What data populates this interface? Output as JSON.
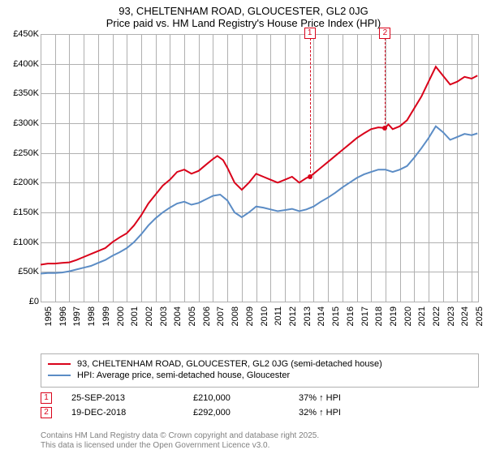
{
  "title": "93, CHELTENHAM ROAD, GLOUCESTER, GL2 0JG",
  "subtitle": "Price paid vs. HM Land Registry's House Price Index (HPI)",
  "chart": {
    "background_color": "#ffffff",
    "grid_color": "#b0b0b0",
    "title_fontsize": 13,
    "label_fontsize": 11,
    "ylim": [
      0,
      450000
    ],
    "ytick_step": 50000,
    "ytick_labels": [
      "£0",
      "£50K",
      "£100K",
      "£150K",
      "£200K",
      "£250K",
      "£300K",
      "£350K",
      "£400K",
      "£450K"
    ],
    "xlim": [
      1995,
      2025.5
    ],
    "xtick_years": [
      1995,
      1996,
      1997,
      1998,
      1999,
      2000,
      2001,
      2002,
      2003,
      2004,
      2005,
      2006,
      2007,
      2008,
      2009,
      2010,
      2011,
      2012,
      2013,
      2014,
      2015,
      2016,
      2017,
      2018,
      2019,
      2020,
      2021,
      2022,
      2023,
      2024,
      2025
    ],
    "series": [
      {
        "key": "price_paid",
        "label": "93, CHELTENHAM ROAD, GLOUCESTER, GL2 0JG (semi-detached house)",
        "color": "#d9021a",
        "line_width": 2,
        "points": [
          [
            1995.0,
            62000
          ],
          [
            1995.5,
            64000
          ],
          [
            1996.0,
            64000
          ],
          [
            1996.5,
            65000
          ],
          [
            1997.0,
            66000
          ],
          [
            1997.5,
            70000
          ],
          [
            1998.0,
            75000
          ],
          [
            1998.5,
            80000
          ],
          [
            1999.0,
            85000
          ],
          [
            1999.5,
            90000
          ],
          [
            2000.0,
            100000
          ],
          [
            2000.5,
            108000
          ],
          [
            2001.0,
            115000
          ],
          [
            2001.5,
            128000
          ],
          [
            2002.0,
            145000
          ],
          [
            2002.5,
            165000
          ],
          [
            2003.0,
            180000
          ],
          [
            2003.5,
            195000
          ],
          [
            2004.0,
            205000
          ],
          [
            2004.5,
            218000
          ],
          [
            2005.0,
            222000
          ],
          [
            2005.5,
            215000
          ],
          [
            2006.0,
            220000
          ],
          [
            2006.5,
            230000
          ],
          [
            2007.0,
            240000
          ],
          [
            2007.3,
            245000
          ],
          [
            2007.7,
            238000
          ],
          [
            2008.0,
            225000
          ],
          [
            2008.5,
            200000
          ],
          [
            2009.0,
            188000
          ],
          [
            2009.5,
            200000
          ],
          [
            2010.0,
            215000
          ],
          [
            2010.5,
            210000
          ],
          [
            2011.0,
            205000
          ],
          [
            2011.5,
            200000
          ],
          [
            2012.0,
            205000
          ],
          [
            2012.5,
            210000
          ],
          [
            2013.0,
            200000
          ],
          [
            2013.5,
            208000
          ],
          [
            2013.73,
            210000
          ],
          [
            2014.0,
            215000
          ],
          [
            2014.5,
            225000
          ],
          [
            2015.0,
            235000
          ],
          [
            2015.5,
            245000
          ],
          [
            2016.0,
            255000
          ],
          [
            2016.5,
            265000
          ],
          [
            2017.0,
            275000
          ],
          [
            2017.5,
            283000
          ],
          [
            2018.0,
            290000
          ],
          [
            2018.5,
            293000
          ],
          [
            2018.97,
            292000
          ],
          [
            2019.2,
            298000
          ],
          [
            2019.5,
            290000
          ],
          [
            2020.0,
            295000
          ],
          [
            2020.5,
            305000
          ],
          [
            2021.0,
            325000
          ],
          [
            2021.5,
            345000
          ],
          [
            2022.0,
            370000
          ],
          [
            2022.5,
            395000
          ],
          [
            2023.0,
            380000
          ],
          [
            2023.5,
            365000
          ],
          [
            2024.0,
            370000
          ],
          [
            2024.5,
            378000
          ],
          [
            2025.0,
            375000
          ],
          [
            2025.4,
            380000
          ]
        ]
      },
      {
        "key": "hpi",
        "label": "HPI: Average price, semi-detached house, Gloucester",
        "color": "#5b8cc5",
        "line_width": 2,
        "points": [
          [
            1995.0,
            47000
          ],
          [
            1995.5,
            48000
          ],
          [
            1996.0,
            48000
          ],
          [
            1996.5,
            49000
          ],
          [
            1997.0,
            51000
          ],
          [
            1997.5,
            54000
          ],
          [
            1998.0,
            57000
          ],
          [
            1998.5,
            60000
          ],
          [
            1999.0,
            65000
          ],
          [
            1999.5,
            70000
          ],
          [
            2000.0,
            77000
          ],
          [
            2000.5,
            83000
          ],
          [
            2001.0,
            90000
          ],
          [
            2001.5,
            100000
          ],
          [
            2002.0,
            113000
          ],
          [
            2002.5,
            128000
          ],
          [
            2003.0,
            140000
          ],
          [
            2003.5,
            150000
          ],
          [
            2004.0,
            158000
          ],
          [
            2004.5,
            165000
          ],
          [
            2005.0,
            168000
          ],
          [
            2005.5,
            163000
          ],
          [
            2006.0,
            166000
          ],
          [
            2006.5,
            172000
          ],
          [
            2007.0,
            178000
          ],
          [
            2007.5,
            180000
          ],
          [
            2008.0,
            170000
          ],
          [
            2008.5,
            150000
          ],
          [
            2009.0,
            142000
          ],
          [
            2009.5,
            150000
          ],
          [
            2010.0,
            160000
          ],
          [
            2010.5,
            158000
          ],
          [
            2011.0,
            155000
          ],
          [
            2011.5,
            152000
          ],
          [
            2012.0,
            154000
          ],
          [
            2012.5,
            156000
          ],
          [
            2013.0,
            152000
          ],
          [
            2013.5,
            155000
          ],
          [
            2014.0,
            160000
          ],
          [
            2014.5,
            168000
          ],
          [
            2015.0,
            175000
          ],
          [
            2015.5,
            183000
          ],
          [
            2016.0,
            192000
          ],
          [
            2016.5,
            200000
          ],
          [
            2017.0,
            208000
          ],
          [
            2017.5,
            214000
          ],
          [
            2018.0,
            218000
          ],
          [
            2018.5,
            222000
          ],
          [
            2019.0,
            222000
          ],
          [
            2019.5,
            218000
          ],
          [
            2020.0,
            222000
          ],
          [
            2020.5,
            228000
          ],
          [
            2021.0,
            242000
          ],
          [
            2021.5,
            258000
          ],
          [
            2022.0,
            275000
          ],
          [
            2022.5,
            295000
          ],
          [
            2023.0,
            285000
          ],
          [
            2023.5,
            272000
          ],
          [
            2024.0,
            277000
          ],
          [
            2024.5,
            282000
          ],
          [
            2025.0,
            280000
          ],
          [
            2025.4,
            283000
          ]
        ]
      }
    ],
    "markers": [
      {
        "n": "1",
        "x": 2013.73,
        "y": 210000,
        "color": "#d9021a"
      },
      {
        "n": "2",
        "x": 2018.97,
        "y": 292000,
        "color": "#d9021a"
      }
    ]
  },
  "legend": {
    "items": [
      {
        "color": "#d9021a",
        "label": "93, CHELTENHAM ROAD, GLOUCESTER, GL2 0JG (semi-detached house)"
      },
      {
        "color": "#5b8cc5",
        "label": "HPI: Average price, semi-detached house, Gloucester"
      }
    ]
  },
  "sales": [
    {
      "n": "1",
      "color": "#d9021a",
      "date": "25-SEP-2013",
      "price": "£210,000",
      "pct": "37% ↑ HPI"
    },
    {
      "n": "2",
      "color": "#d9021a",
      "date": "19-DEC-2018",
      "price": "£292,000",
      "pct": "32% ↑ HPI"
    }
  ],
  "footer": {
    "line1": "Contains HM Land Registry data © Crown copyright and database right 2025.",
    "line2": "This data is licensed under the Open Government Licence v3.0."
  }
}
